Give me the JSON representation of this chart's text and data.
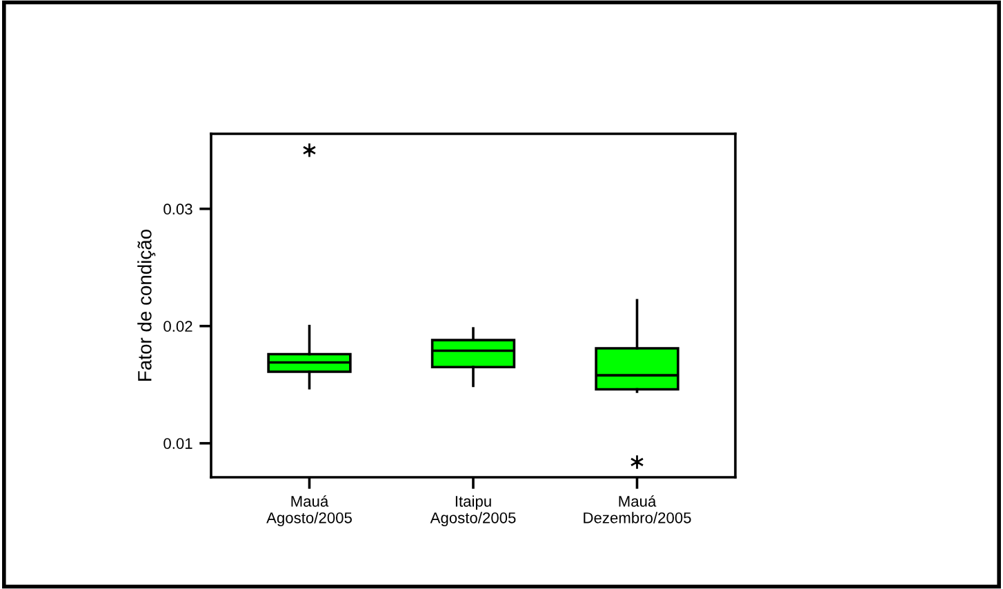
{
  "chart_data": {
    "type": "box",
    "ylabel": "Fator de condição",
    "categories": [
      "Mauá\nAgosto/2005",
      "Itaipu\nAgosto/2005",
      "Mauá\nDezembro/2005"
    ],
    "boxes": [
      {
        "low": 0.0147,
        "q1": 0.0161,
        "median": 0.0169,
        "q3": 0.0176,
        "high": 0.02,
        "outliers": [
          0.035
        ]
      },
      {
        "low": 0.0149,
        "q1": 0.0165,
        "median": 0.0179,
        "q3": 0.0188,
        "high": 0.0198
      },
      {
        "low": 0.0144,
        "q1": 0.0146,
        "median": 0.0158,
        "q3": 0.0181,
        "high": 0.0222,
        "outliers": [
          0.0084
        ]
      }
    ],
    "color": "#00ff00",
    "ylim": [
      0.0071,
      0.0364
    ],
    "yticks": [
      0.01,
      0.02,
      0.03
    ],
    "grid": false,
    "marker": "star"
  }
}
